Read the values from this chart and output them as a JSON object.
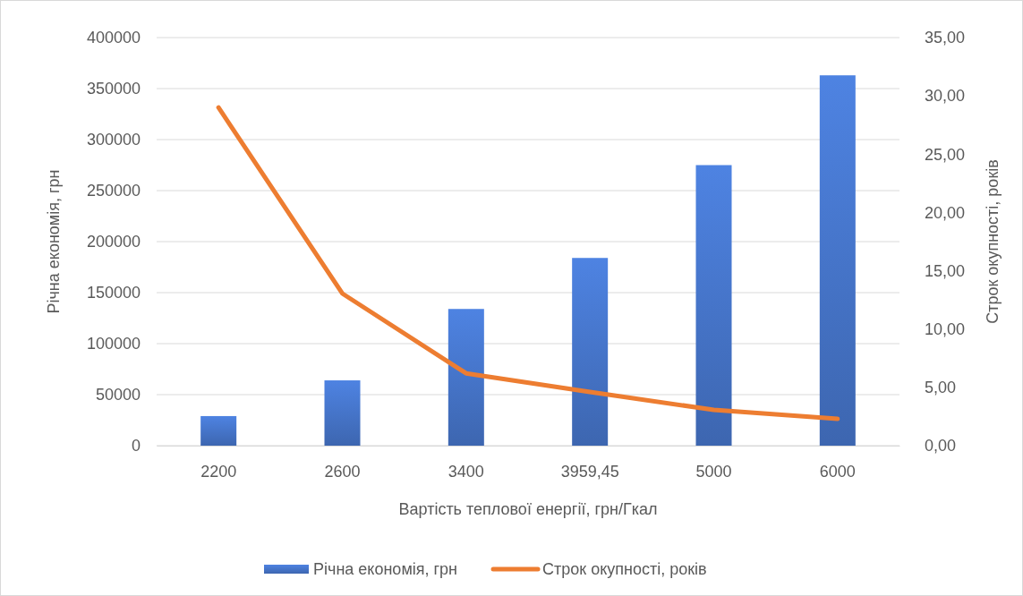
{
  "chart_data": {
    "type": "bar",
    "xlabel": "Вартість теплової енергії, грн/Гкал",
    "ylabel": "Річна економія, грн",
    "y2label": "Строк окупності, років",
    "categories": [
      "2200",
      "2600",
      "3400",
      "3959,45",
      "5000",
      "6000"
    ],
    "series": [
      {
        "name": "Річна економія, грн",
        "color": "#4472c4",
        "values": [
          29000,
          64000,
          134000,
          184000,
          275000,
          363000
        ]
      },
      {
        "name": "Строк окупності, років",
        "type": "line",
        "axis": "y2",
        "color": "#ed7d31",
        "values": [
          29.0,
          13.05,
          6.2,
          4.6,
          3.07,
          2.3
        ]
      }
    ],
    "ylim": [
      0,
      400000
    ],
    "yticks": [
      0,
      50000,
      100000,
      150000,
      200000,
      250000,
      300000,
      350000,
      400000
    ],
    "y2lim": [
      0,
      35
    ],
    "y2ticks": [
      {
        "value": 0,
        "label": "0,00"
      },
      {
        "value": 5,
        "label": "5,00"
      },
      {
        "value": 10,
        "label": "10,00"
      },
      {
        "value": 15,
        "label": "15,00"
      },
      {
        "value": 20,
        "label": "20,00"
      },
      {
        "value": 25,
        "label": "25,00"
      },
      {
        "value": 30,
        "label": "30,00"
      },
      {
        "value": 35,
        "label": "35,00"
      }
    ],
    "grid": "y",
    "legend": "bottom",
    "marker": "none",
    "line_style": "solid"
  }
}
